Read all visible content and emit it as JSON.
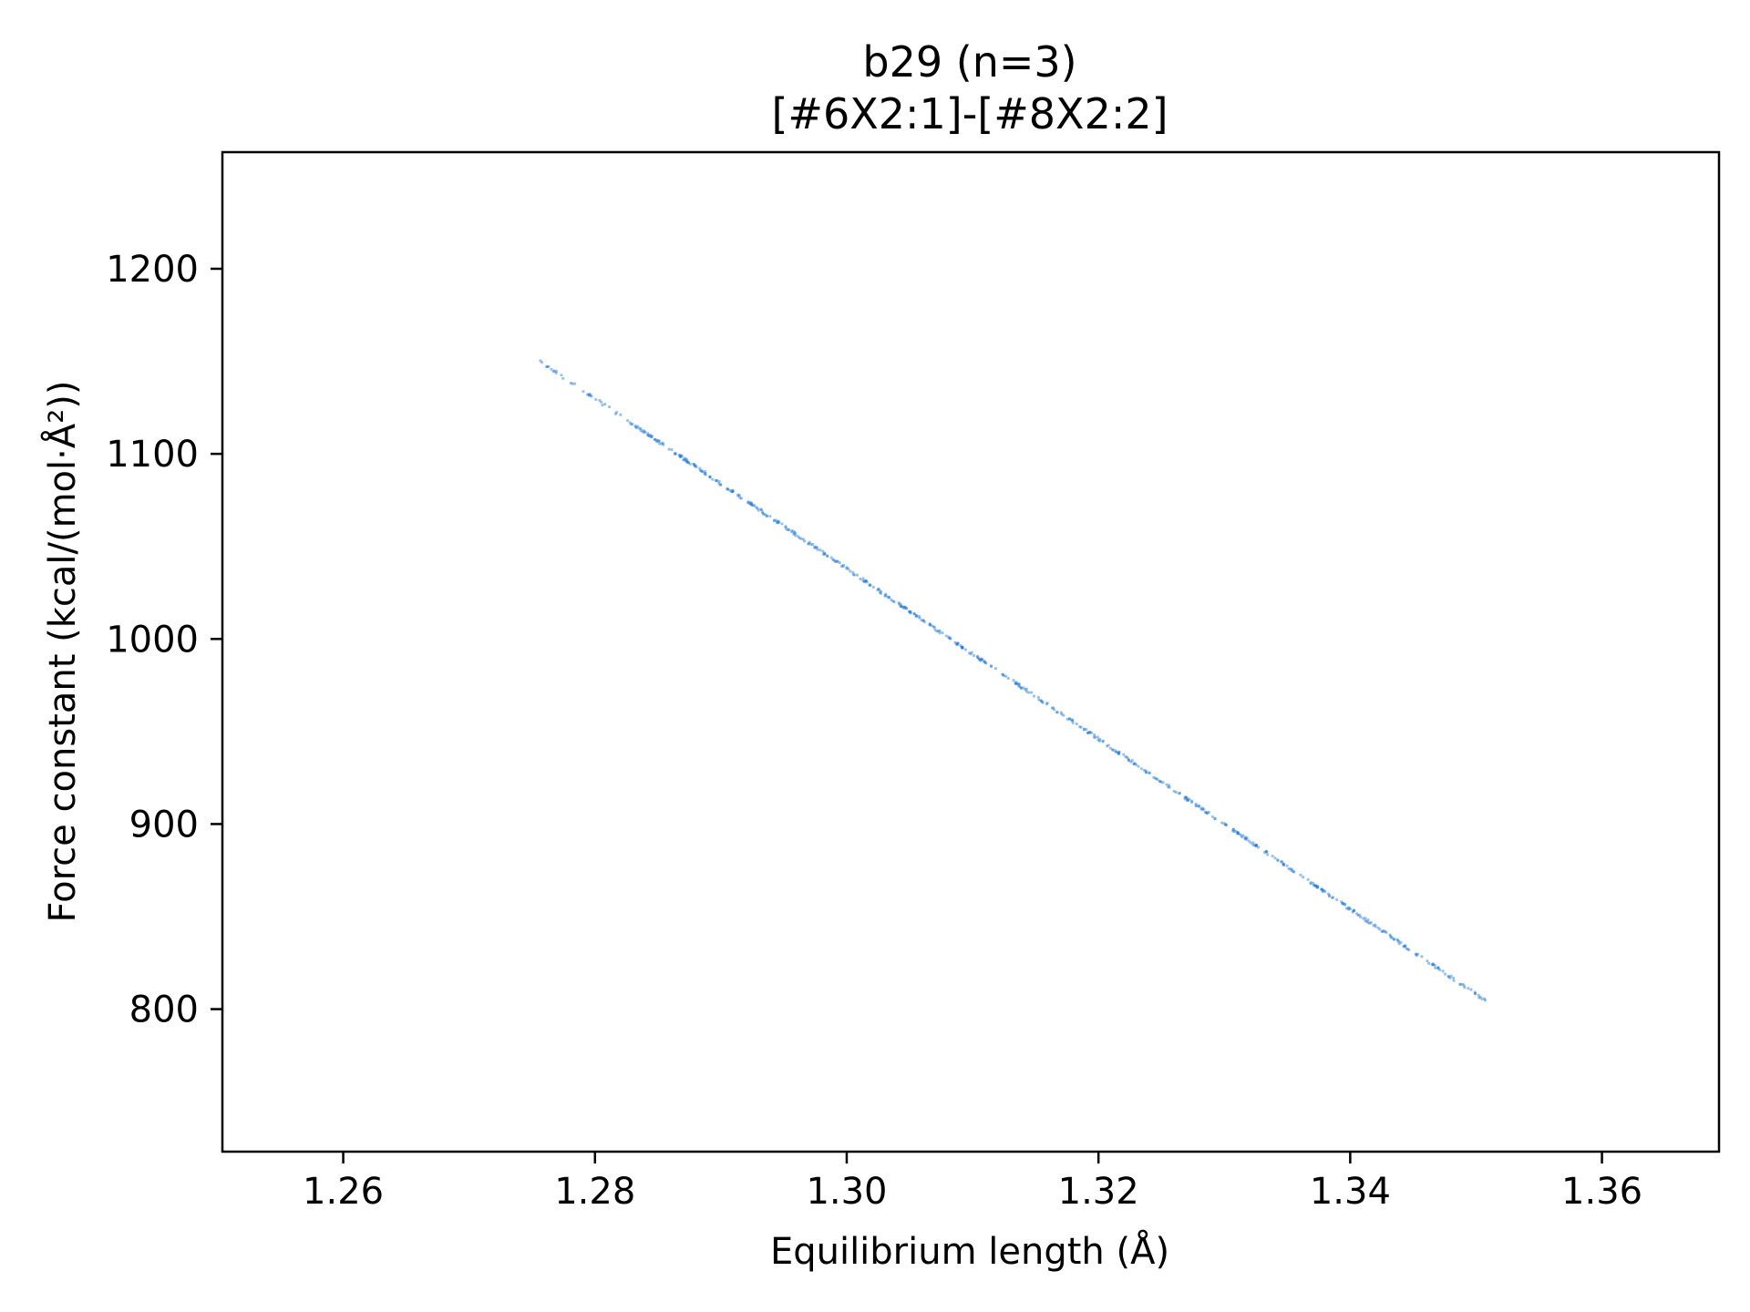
{
  "chart_data": {
    "type": "scatter",
    "title": "b29 (n=3)",
    "subtitle": "[#6X2:1]-[#8X2:2]",
    "xlabel": "Equilibrium length (Å)",
    "ylabel": "Force constant (kcal/(mol·Å²))",
    "xlim": [
      1.2504,
      1.3693
    ],
    "ylim": [
      723,
      1263
    ],
    "xticks": [
      1.26,
      1.28,
      1.3,
      1.32,
      1.34,
      1.36
    ],
    "xtick_labels": [
      "1.26",
      "1.28",
      "1.30",
      "1.32",
      "1.34",
      "1.36"
    ],
    "yticks": [
      800,
      900,
      1000,
      1100,
      1200
    ],
    "ytick_labels": [
      "800",
      "900",
      "1000",
      "1100",
      "1200"
    ],
    "grid": false,
    "color": "#1f77d4",
    "series": [
      {
        "x_range": [
          1.2754,
          1.3511
        ],
        "y_range": [
          1151,
          803
        ],
        "dense_x_range": [
          1.2832,
          1.3452
        ],
        "dense_y_range": [
          1114,
          830
        ],
        "points": 650
      }
    ]
  }
}
